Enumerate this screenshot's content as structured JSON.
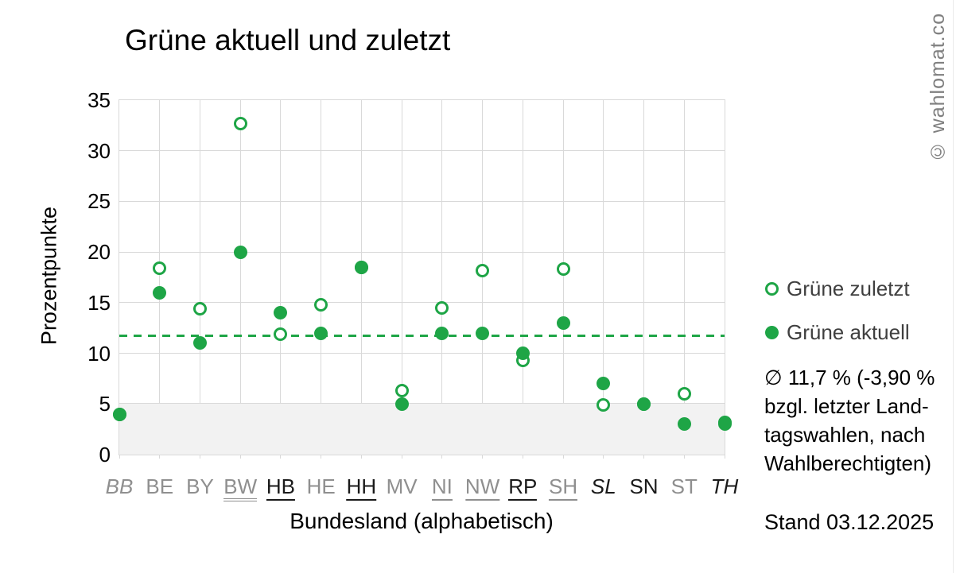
{
  "title": "Grüne aktuell und zuletzt",
  "watermark": "© wahlomat.co",
  "legend": {
    "zuletzt_label": "Grüne zuletzt",
    "aktuell_label": "Grüne aktuell"
  },
  "stats": {
    "lines": [
      "∅ 11,7 % (-3,90 %",
      "bzgl. letzter Land-",
      "tagswahlen, nach",
      "Wahlberechtigten)"
    ]
  },
  "stand_date": "Stand 03.12.2025",
  "colors": {
    "green": "#1ea546",
    "grid": "#d9d9d9",
    "band": "#f2f2f2",
    "label_gray": "#8f8f8f",
    "label_black": "#1a1a1a",
    "watermark": "#808080"
  },
  "chart_data": {
    "type": "scatter",
    "title": "Grüne aktuell und zuletzt",
    "xlabel": "Bundesland (alphabetisch)",
    "ylabel": "Prozentpunkte",
    "ylim": [
      0,
      35
    ],
    "ytick_step": 5,
    "yticks": [
      0,
      5,
      10,
      15,
      20,
      25,
      30,
      35
    ],
    "grid": true,
    "legend_position": "right",
    "average_line_value": 11.7,
    "average_annotation": "∅ 11,7 % (-3,90 % bzgl. letzter Landtagswahlen, nach Wahlberechtigten)",
    "threshold_band": [
      0,
      5
    ],
    "categories": [
      "BB",
      "BE",
      "BY",
      "BW",
      "HB",
      "HE",
      "HH",
      "MV",
      "NI",
      "NW",
      "RP",
      "SH",
      "SL",
      "SN",
      "ST",
      "TH"
    ],
    "category_styles": [
      {
        "color": "gray",
        "italic": true,
        "underline": "none"
      },
      {
        "color": "gray",
        "italic": false,
        "underline": "none"
      },
      {
        "color": "gray",
        "italic": false,
        "underline": "none"
      },
      {
        "color": "gray",
        "italic": false,
        "underline": "double"
      },
      {
        "color": "black",
        "italic": false,
        "underline": "single"
      },
      {
        "color": "gray",
        "italic": false,
        "underline": "none"
      },
      {
        "color": "black",
        "italic": false,
        "underline": "single"
      },
      {
        "color": "gray",
        "italic": false,
        "underline": "none"
      },
      {
        "color": "gray",
        "italic": false,
        "underline": "single"
      },
      {
        "color": "gray",
        "italic": false,
        "underline": "single"
      },
      {
        "color": "black",
        "italic": false,
        "underline": "single"
      },
      {
        "color": "gray",
        "italic": false,
        "underline": "single"
      },
      {
        "color": "black",
        "italic": true,
        "underline": "none"
      },
      {
        "color": "black",
        "italic": false,
        "underline": "none"
      },
      {
        "color": "gray",
        "italic": false,
        "underline": "none"
      },
      {
        "color": "black",
        "italic": true,
        "underline": "none"
      }
    ],
    "series": [
      {
        "name": "Grüne zuletzt",
        "marker": "open",
        "values": [
          4.0,
          18.4,
          14.4,
          32.7,
          11.9,
          14.8,
          18.5,
          6.3,
          14.5,
          18.2,
          9.3,
          18.3,
          4.9,
          5.0,
          6.0,
          3.2
        ]
      },
      {
        "name": "Grüne aktuell",
        "marker": "filled",
        "values": [
          4.0,
          16.0,
          11.0,
          20.0,
          14.0,
          12.0,
          18.5,
          5.0,
          12.0,
          12.0,
          10.0,
          13.0,
          7.0,
          5.0,
          3.0,
          3.0
        ]
      }
    ]
  }
}
